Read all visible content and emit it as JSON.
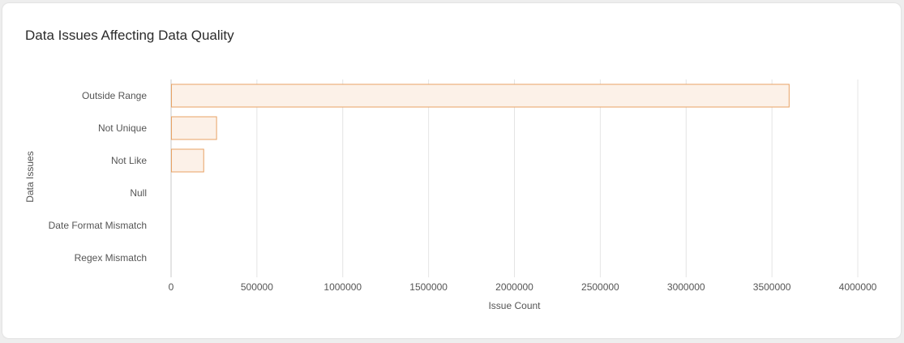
{
  "card": {
    "title": "Data Issues Affecting Data Quality"
  },
  "colors": {
    "bar_fill": "#fcf1e8",
    "bar_stroke": "#e8a264",
    "grid": "#e4e4e4",
    "axis": "#c8c8c8"
  },
  "chart_data": {
    "type": "bar",
    "orientation": "horizontal",
    "title": "Data Issues Affecting Data Quality",
    "xlabel": "Issue Count",
    "ylabel": "Data Issues",
    "categories": [
      "Outside Range",
      "Not Unique",
      "Not Like",
      "Null",
      "Date Format Mismatch",
      "Regex Mismatch"
    ],
    "values": [
      3600000,
      265000,
      190000,
      0,
      0,
      0
    ],
    "xlim": [
      0,
      4000000
    ],
    "xticks": [
      "0",
      "500000",
      "1000000",
      "1500000",
      "2000000",
      "2500000",
      "3000000",
      "3500000",
      "4000000"
    ],
    "grid": true,
    "legend": "none"
  }
}
